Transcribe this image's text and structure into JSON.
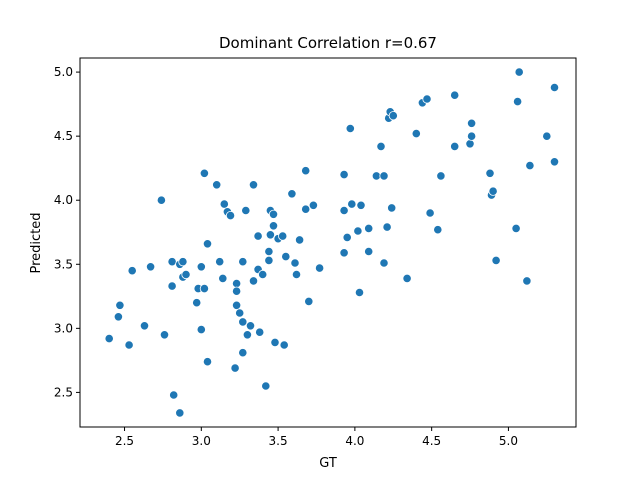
{
  "chart_data": {
    "type": "scatter",
    "title": "Dominant Correlation r=0.67",
    "xlabel": "GT",
    "ylabel": "Predicted",
    "xlim": [
      2.21,
      5.44
    ],
    "ylim": [
      2.23,
      5.11
    ],
    "xticks": [
      2.5,
      3.0,
      3.5,
      4.0,
      4.5,
      5.0
    ],
    "xtick_labels": [
      "2.5",
      "3.0",
      "3.5",
      "4.0",
      "4.5",
      "5.0"
    ],
    "yticks": [
      2.5,
      3.0,
      3.5,
      4.0,
      4.5,
      5.0
    ],
    "ytick_labels": [
      "2.5",
      "3.0",
      "3.5",
      "4.0",
      "4.5",
      "5.0"
    ],
    "grid": false,
    "legend": false,
    "marker_color": "#1f77b4",
    "points": [
      [
        2.4,
        2.92
      ],
      [
        2.46,
        3.09
      ],
      [
        2.47,
        3.18
      ],
      [
        2.53,
        2.87
      ],
      [
        2.55,
        3.45
      ],
      [
        2.63,
        3.02
      ],
      [
        2.67,
        3.48
      ],
      [
        2.74,
        4.0
      ],
      [
        2.76,
        2.95
      ],
      [
        2.81,
        3.33
      ],
      [
        2.81,
        3.52
      ],
      [
        2.82,
        2.48
      ],
      [
        2.86,
        3.5
      ],
      [
        2.86,
        2.34
      ],
      [
        2.88,
        3.4
      ],
      [
        2.88,
        3.52
      ],
      [
        2.9,
        3.42
      ],
      [
        2.97,
        3.2
      ],
      [
        2.98,
        3.31
      ],
      [
        3.0,
        2.99
      ],
      [
        3.0,
        3.48
      ],
      [
        3.02,
        4.21
      ],
      [
        3.02,
        3.31
      ],
      [
        3.04,
        3.66
      ],
      [
        3.04,
        2.74
      ],
      [
        3.1,
        4.12
      ],
      [
        3.12,
        3.52
      ],
      [
        3.14,
        3.39
      ],
      [
        3.15,
        3.97
      ],
      [
        3.17,
        3.91
      ],
      [
        3.19,
        3.88
      ],
      [
        3.22,
        2.69
      ],
      [
        3.23,
        3.35
      ],
      [
        3.23,
        3.29
      ],
      [
        3.23,
        3.18
      ],
      [
        3.25,
        3.12
      ],
      [
        3.27,
        3.05
      ],
      [
        3.27,
        2.81
      ],
      [
        3.27,
        3.52
      ],
      [
        3.29,
        3.92
      ],
      [
        3.3,
        2.95
      ],
      [
        3.32,
        3.02
      ],
      [
        3.34,
        4.12
      ],
      [
        3.34,
        3.37
      ],
      [
        3.37,
        3.46
      ],
      [
        3.37,
        3.72
      ],
      [
        3.38,
        2.97
      ],
      [
        3.4,
        3.42
      ],
      [
        3.42,
        2.55
      ],
      [
        3.44,
        3.53
      ],
      [
        3.44,
        3.6
      ],
      [
        3.45,
        3.92
      ],
      [
        3.45,
        3.73
      ],
      [
        3.47,
        3.89
      ],
      [
        3.47,
        3.8
      ],
      [
        3.48,
        2.89
      ],
      [
        3.5,
        3.7
      ],
      [
        3.53,
        3.72
      ],
      [
        3.54,
        2.87
      ],
      [
        3.55,
        3.56
      ],
      [
        3.59,
        4.05
      ],
      [
        3.61,
        3.51
      ],
      [
        3.62,
        3.42
      ],
      [
        3.64,
        3.69
      ],
      [
        3.68,
        3.93
      ],
      [
        3.68,
        4.23
      ],
      [
        3.7,
        3.21
      ],
      [
        3.73,
        3.96
      ],
      [
        3.77,
        3.47
      ],
      [
        3.93,
        3.59
      ],
      [
        3.93,
        3.92
      ],
      [
        3.93,
        4.2
      ],
      [
        3.95,
        3.71
      ],
      [
        3.97,
        4.56
      ],
      [
        3.98,
        3.97
      ],
      [
        4.02,
        3.76
      ],
      [
        4.03,
        3.28
      ],
      [
        4.04,
        3.96
      ],
      [
        4.09,
        3.6
      ],
      [
        4.09,
        3.78
      ],
      [
        4.14,
        4.19
      ],
      [
        4.17,
        4.42
      ],
      [
        4.19,
        3.51
      ],
      [
        4.19,
        4.19
      ],
      [
        4.21,
        3.79
      ],
      [
        4.22,
        4.64
      ],
      [
        4.23,
        4.69
      ],
      [
        4.24,
        3.94
      ],
      [
        4.25,
        4.66
      ],
      [
        4.34,
        3.39
      ],
      [
        4.4,
        4.52
      ],
      [
        4.44,
        4.76
      ],
      [
        4.47,
        4.79
      ],
      [
        4.49,
        3.9
      ],
      [
        4.54,
        3.77
      ],
      [
        4.56,
        4.19
      ],
      [
        4.65,
        4.42
      ],
      [
        4.65,
        4.82
      ],
      [
        4.75,
        4.44
      ],
      [
        4.76,
        4.6
      ],
      [
        4.76,
        4.5
      ],
      [
        4.88,
        4.21
      ],
      [
        4.89,
        4.04
      ],
      [
        4.9,
        4.07
      ],
      [
        4.92,
        3.53
      ],
      [
        5.05,
        3.78
      ],
      [
        5.06,
        4.77
      ],
      [
        5.07,
        5.0
      ],
      [
        5.12,
        3.37
      ],
      [
        5.14,
        4.27
      ],
      [
        5.25,
        4.5
      ],
      [
        5.3,
        4.88
      ],
      [
        5.3,
        4.3
      ]
    ]
  }
}
